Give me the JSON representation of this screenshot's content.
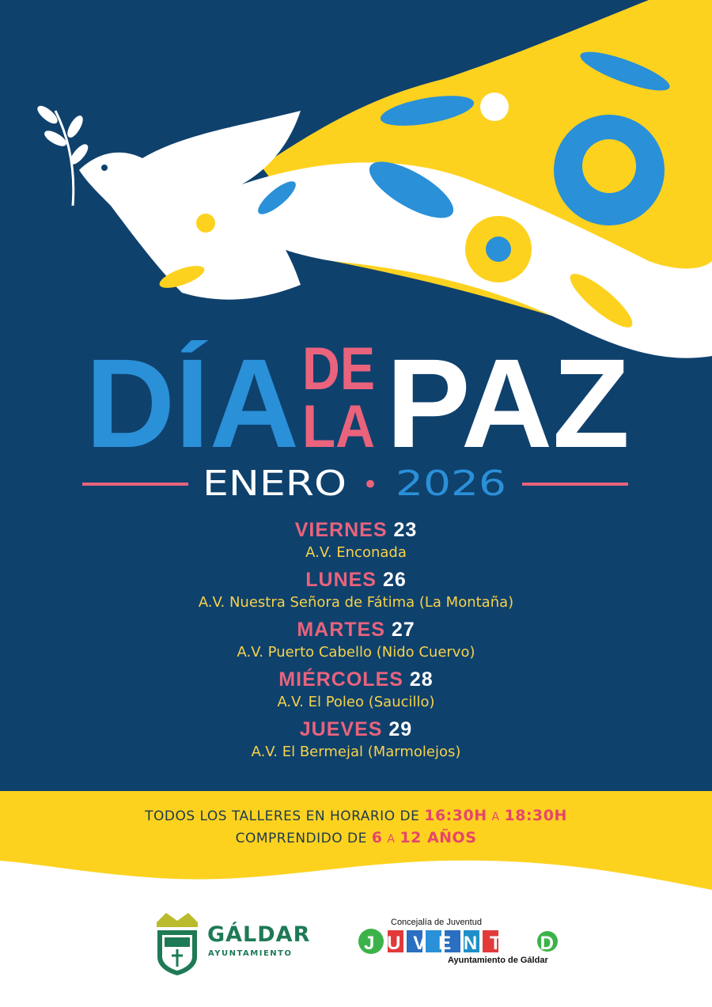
{
  "title": {
    "word1": "DÍA",
    "word2a": "DE",
    "word2b": "LA",
    "word3": "PAZ"
  },
  "subtitle": {
    "month": "ENERO",
    "separator": "•",
    "year": "2026"
  },
  "schedule": [
    {
      "day": "VIERNES",
      "date": "23",
      "venue": "A.V. Enconada"
    },
    {
      "day": "LUNES",
      "date": "26",
      "venue": "A.V. Nuestra Señora de Fátima (La Montaña)"
    },
    {
      "day": "MARTES",
      "date": "27",
      "venue": "A.V. Puerto Cabello (Nido Cuervo)"
    },
    {
      "day": "MIÉRCOLES",
      "date": "28",
      "venue": "A.V. El Poleo (Saucillo)"
    },
    {
      "day": "JUEVES",
      "date": "29",
      "venue": "A.V. El Bermejal (Marmolejos)"
    }
  ],
  "info": {
    "line1_text": "TODOS LOS TALLERES EN HORARIO DE",
    "line1_start": "16:30H",
    "line1_a": "A",
    "line1_end": "18:30H",
    "line2_text": "COMPRENDIDO DE",
    "line2_min": "6",
    "line2_a": "A",
    "line2_max": "12 AÑOS"
  },
  "logos": {
    "galdar": {
      "name": "GÁLDAR",
      "sub": "AYUNTAMIENTO"
    },
    "juventud": {
      "top": "Concejalía de Juventud",
      "word": "JUVENTUD",
      "bottom": "Ayuntamiento de Gáldar"
    }
  },
  "colors": {
    "background": "#0f416d",
    "blue": "#2a90d8",
    "pink": "#e9637d",
    "yellow": "#fdd21f",
    "white": "#ffffff",
    "green": "#1e7a55"
  },
  "icons": [
    "dove-icon",
    "olive-branch-icon",
    "flower-icon",
    "leaf-icon",
    "shield-crest-icon"
  ]
}
